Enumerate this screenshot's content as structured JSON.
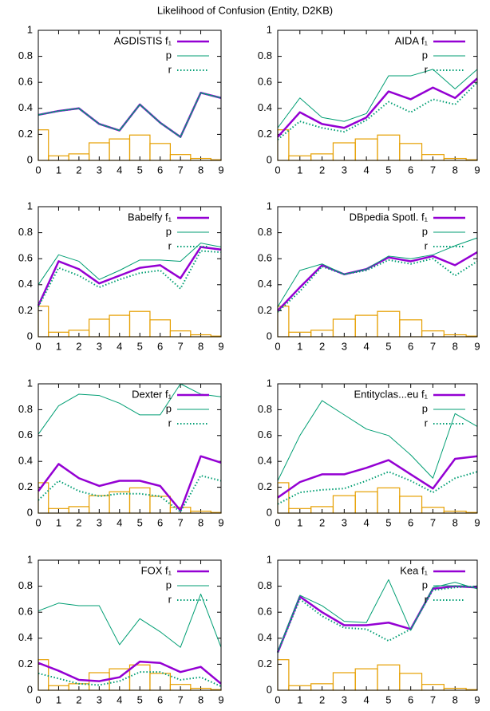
{
  "title": "Likelihood of Confusion (Entity, D2KB)",
  "chart_data": [
    {
      "type": "line",
      "x": [
        0,
        1,
        2,
        3,
        4,
        5,
        6,
        7,
        8,
        9
      ],
      "xlim": [
        0,
        9
      ],
      "ylim": [
        0,
        1
      ],
      "xticks": [
        0,
        1,
        2,
        3,
        4,
        5,
        6,
        7,
        8,
        9
      ],
      "yticks": [
        0,
        0.2,
        0.4,
        0.6,
        0.8,
        1
      ],
      "series": [
        {
          "name": "AGDISTIS f₁",
          "color": "#9400d3",
          "line_width": 2.5,
          "values": [
            0.35,
            0.38,
            0.4,
            0.28,
            0.23,
            0.43,
            0.29,
            0.18,
            0.52,
            0.48
          ]
        },
        {
          "name": "p",
          "color": "#009e73",
          "line_width": 1,
          "values": [
            0.35,
            0.38,
            0.4,
            0.28,
            0.23,
            0.43,
            0.29,
            0.18,
            0.52,
            0.48
          ]
        },
        {
          "name": "r",
          "color": "#009e73",
          "line_width": 2,
          "line_style": "dotted",
          "values": [
            0.35,
            0.38,
            0.4,
            0.28,
            0.23,
            0.43,
            0.29,
            0.18,
            0.52,
            0.48
          ]
        }
      ],
      "bar_color": "#e69f00",
      "bar_values": [
        0.235,
        0.035,
        0.05,
        0.135,
        0.165,
        0.195,
        0.13,
        0.045,
        0.015,
        0.005
      ]
    },
    {
      "type": "line",
      "x": [
        0,
        1,
        2,
        3,
        4,
        5,
        6,
        7,
        8,
        9
      ],
      "xlim": [
        0,
        9
      ],
      "ylim": [
        0,
        1
      ],
      "xticks": [
        0,
        1,
        2,
        3,
        4,
        5,
        6,
        7,
        8,
        9
      ],
      "yticks": [
        0,
        0.2,
        0.4,
        0.6,
        0.8,
        1
      ],
      "series": [
        {
          "name": "AIDA f₁",
          "color": "#9400d3",
          "line_width": 2.5,
          "values": [
            0.18,
            0.37,
            0.28,
            0.25,
            0.33,
            0.53,
            0.47,
            0.56,
            0.48,
            0.63
          ]
        },
        {
          "name": "p",
          "color": "#009e73",
          "line_width": 1,
          "values": [
            0.25,
            0.48,
            0.33,
            0.3,
            0.36,
            0.65,
            0.65,
            0.7,
            0.55,
            0.7
          ]
        },
        {
          "name": "r",
          "color": "#009e73",
          "line_width": 2,
          "line_style": "dotted",
          "values": [
            0.16,
            0.3,
            0.25,
            0.22,
            0.31,
            0.45,
            0.37,
            0.47,
            0.43,
            0.6
          ]
        }
      ],
      "bar_color": "#e69f00",
      "bar_values": [
        0.235,
        0.035,
        0.05,
        0.135,
        0.165,
        0.195,
        0.13,
        0.045,
        0.015,
        0.005
      ]
    },
    {
      "type": "line",
      "x": [
        0,
        1,
        2,
        3,
        4,
        5,
        6,
        7,
        8,
        9
      ],
      "xlim": [
        0,
        9
      ],
      "ylim": [
        0,
        1
      ],
      "xticks": [
        0,
        1,
        2,
        3,
        4,
        5,
        6,
        7,
        8,
        9
      ],
      "yticks": [
        0,
        0.2,
        0.4,
        0.6,
        0.8,
        1
      ],
      "series": [
        {
          "name": "Babelfy f₁",
          "color": "#9400d3",
          "line_width": 2.5,
          "values": [
            0.24,
            0.58,
            0.52,
            0.41,
            0.47,
            0.53,
            0.55,
            0.45,
            0.69,
            0.67
          ]
        },
        {
          "name": "p",
          "color": "#009e73",
          "line_width": 1,
          "values": [
            0.4,
            0.63,
            0.58,
            0.44,
            0.51,
            0.59,
            0.59,
            0.58,
            0.72,
            0.69
          ]
        },
        {
          "name": "r",
          "color": "#009e73",
          "line_width": 2,
          "line_style": "dotted",
          "values": [
            0.23,
            0.53,
            0.47,
            0.38,
            0.44,
            0.49,
            0.51,
            0.37,
            0.66,
            0.65
          ]
        }
      ],
      "bar_color": "#e69f00",
      "bar_values": [
        0.235,
        0.035,
        0.05,
        0.135,
        0.165,
        0.195,
        0.13,
        0.045,
        0.015,
        0.005
      ]
    },
    {
      "type": "line",
      "x": [
        0,
        1,
        2,
        3,
        4,
        5,
        6,
        7,
        8,
        9
      ],
      "xlim": [
        0,
        9
      ],
      "ylim": [
        0,
        1
      ],
      "xticks": [
        0,
        1,
        2,
        3,
        4,
        5,
        6,
        7,
        8,
        9
      ],
      "yticks": [
        0,
        0.2,
        0.4,
        0.6,
        0.8,
        1
      ],
      "series": [
        {
          "name": "DBpedia Spotl. f₁",
          "color": "#9400d3",
          "line_width": 2.5,
          "values": [
            0.2,
            0.38,
            0.55,
            0.48,
            0.52,
            0.61,
            0.58,
            0.62,
            0.55,
            0.65
          ]
        },
        {
          "name": "p",
          "color": "#009e73",
          "line_width": 1,
          "values": [
            0.23,
            0.51,
            0.56,
            0.48,
            0.52,
            0.62,
            0.6,
            0.63,
            0.7,
            0.76
          ]
        },
        {
          "name": "r",
          "color": "#009e73",
          "line_width": 2,
          "line_style": "dotted",
          "values": [
            0.19,
            0.35,
            0.54,
            0.48,
            0.51,
            0.59,
            0.56,
            0.6,
            0.47,
            0.58
          ]
        }
      ],
      "bar_color": "#e69f00",
      "bar_values": [
        0.235,
        0.035,
        0.05,
        0.135,
        0.165,
        0.195,
        0.13,
        0.045,
        0.015,
        0.005
      ]
    },
    {
      "type": "line",
      "x": [
        0,
        1,
        2,
        3,
        4,
        5,
        6,
        7,
        8,
        9
      ],
      "xlim": [
        0,
        9
      ],
      "ylim": [
        0,
        1
      ],
      "xticks": [
        0,
        1,
        2,
        3,
        4,
        5,
        6,
        7,
        8,
        9
      ],
      "yticks": [
        0,
        0.2,
        0.4,
        0.6,
        0.8,
        1
      ],
      "series": [
        {
          "name": "Dexter f₁",
          "color": "#9400d3",
          "line_width": 2.5,
          "values": [
            0.17,
            0.38,
            0.27,
            0.21,
            0.25,
            0.25,
            0.21,
            0.02,
            0.44,
            0.39
          ]
        },
        {
          "name": "p",
          "color": "#009e73",
          "line_width": 1,
          "values": [
            0.61,
            0.83,
            0.92,
            0.91,
            0.85,
            0.76,
            0.76,
            1.0,
            0.92,
            0.9
          ]
        },
        {
          "name": "r",
          "color": "#009e73",
          "line_width": 2,
          "line_style": "dotted",
          "values": [
            0.1,
            0.25,
            0.17,
            0.13,
            0.15,
            0.15,
            0.13,
            0.01,
            0.29,
            0.25
          ]
        }
      ],
      "bar_color": "#e69f00",
      "bar_values": [
        0.235,
        0.035,
        0.05,
        0.135,
        0.165,
        0.195,
        0.13,
        0.045,
        0.015,
        0.005
      ]
    },
    {
      "type": "line",
      "x": [
        0,
        1,
        2,
        3,
        4,
        5,
        6,
        7,
        8,
        9
      ],
      "xlim": [
        0,
        9
      ],
      "ylim": [
        0,
        1
      ],
      "xticks": [
        0,
        1,
        2,
        3,
        4,
        5,
        6,
        7,
        8,
        9
      ],
      "yticks": [
        0,
        0.2,
        0.4,
        0.6,
        0.8,
        1
      ],
      "series": [
        {
          "name": "Entityclas...eu f₁",
          "color": "#9400d3",
          "line_width": 2.5,
          "values": [
            0.12,
            0.24,
            0.3,
            0.3,
            0.35,
            0.41,
            0.3,
            0.19,
            0.42,
            0.44
          ]
        },
        {
          "name": "p",
          "color": "#009e73",
          "line_width": 1,
          "values": [
            0.25,
            0.6,
            0.87,
            0.76,
            0.65,
            0.6,
            0.45,
            0.27,
            0.77,
            0.67
          ]
        },
        {
          "name": "r",
          "color": "#009e73",
          "line_width": 2,
          "line_style": "dotted",
          "values": [
            0.07,
            0.16,
            0.18,
            0.19,
            0.25,
            0.32,
            0.25,
            0.16,
            0.27,
            0.32
          ]
        }
      ],
      "bar_color": "#e69f00",
      "bar_values": [
        0.235,
        0.035,
        0.05,
        0.135,
        0.165,
        0.195,
        0.13,
        0.045,
        0.015,
        0.005
      ]
    },
    {
      "type": "line",
      "x": [
        0,
        1,
        2,
        3,
        4,
        5,
        6,
        7,
        8,
        9
      ],
      "xlim": [
        0,
        9
      ],
      "ylim": [
        0,
        1
      ],
      "xticks": [
        0,
        1,
        2,
        3,
        4,
        5,
        6,
        7,
        8,
        9
      ],
      "yticks": [
        0,
        0.2,
        0.4,
        0.6,
        0.8,
        1
      ],
      "series": [
        {
          "name": "FOX f₁",
          "color": "#9400d3",
          "line_width": 2.5,
          "values": [
            0.21,
            0.15,
            0.08,
            0.07,
            0.1,
            0.22,
            0.21,
            0.14,
            0.18,
            0.05
          ]
        },
        {
          "name": "p",
          "color": "#009e73",
          "line_width": 1,
          "values": [
            0.61,
            0.67,
            0.65,
            0.65,
            0.35,
            0.55,
            0.45,
            0.33,
            0.74,
            0.33
          ]
        },
        {
          "name": "r",
          "color": "#009e73",
          "line_width": 2,
          "line_style": "dotted",
          "values": [
            0.13,
            0.09,
            0.05,
            0.04,
            0.07,
            0.14,
            0.14,
            0.08,
            0.1,
            0.03
          ]
        }
      ],
      "bar_color": "#e69f00",
      "bar_values": [
        0.235,
        0.035,
        0.05,
        0.135,
        0.165,
        0.195,
        0.13,
        0.045,
        0.015,
        0.005
      ]
    },
    {
      "type": "line",
      "x": [
        0,
        1,
        2,
        3,
        4,
        5,
        6,
        7,
        8,
        9
      ],
      "xlim": [
        0,
        9
      ],
      "ylim": [
        0,
        1
      ],
      "xticks": [
        0,
        1,
        2,
        3,
        4,
        5,
        6,
        7,
        8,
        9
      ],
      "yticks": [
        0,
        0.2,
        0.4,
        0.6,
        0.8,
        1
      ],
      "series": [
        {
          "name": "Kea f₁",
          "color": "#9400d3",
          "line_width": 2.5,
          "values": [
            0.29,
            0.72,
            0.6,
            0.5,
            0.5,
            0.52,
            0.47,
            0.78,
            0.8,
            0.79
          ]
        },
        {
          "name": "p",
          "color": "#009e73",
          "line_width": 1,
          "values": [
            0.3,
            0.73,
            0.65,
            0.53,
            0.52,
            0.85,
            0.46,
            0.79,
            0.83,
            0.78
          ]
        },
        {
          "name": "r",
          "color": "#009e73",
          "line_width": 2,
          "line_style": "dotted",
          "values": [
            0.29,
            0.7,
            0.57,
            0.48,
            0.47,
            0.38,
            0.47,
            0.77,
            0.79,
            0.8
          ]
        }
      ],
      "bar_color": "#e69f00",
      "bar_values": [
        0.235,
        0.035,
        0.05,
        0.135,
        0.165,
        0.195,
        0.13,
        0.045,
        0.015,
        0.005
      ]
    }
  ]
}
